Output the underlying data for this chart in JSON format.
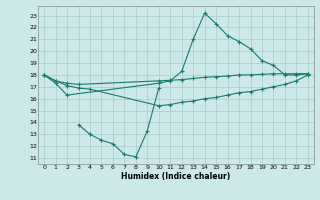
{
  "xlabel": "Humidex (Indice chaleur)",
  "background_color": "#cce8e8",
  "grid_color": "#aacccc",
  "line_color": "#1a7a6e",
  "xlim": [
    -0.5,
    23.5
  ],
  "ylim": [
    10.5,
    23.8
  ],
  "yticks": [
    11,
    12,
    13,
    14,
    15,
    16,
    17,
    18,
    19,
    20,
    21,
    22,
    23
  ],
  "xticks": [
    0,
    1,
    2,
    3,
    4,
    5,
    6,
    7,
    8,
    9,
    10,
    11,
    12,
    13,
    14,
    15,
    16,
    17,
    18,
    19,
    20,
    21,
    22,
    23
  ],
  "line1_x": [
    0,
    1,
    2,
    10,
    11,
    12,
    13,
    14,
    15,
    16,
    17,
    18,
    19,
    20,
    21,
    22,
    23
  ],
  "line1_y": [
    18.0,
    17.3,
    16.3,
    17.3,
    17.5,
    18.3,
    21.0,
    23.2,
    22.3,
    21.3,
    20.8,
    20.2,
    19.2,
    18.8,
    18.0,
    18.0,
    18.1
  ],
  "line2_x": [
    0,
    1,
    2,
    3,
    10,
    11,
    12,
    13,
    14,
    15,
    16,
    17,
    18,
    19,
    20,
    21,
    22,
    23
  ],
  "line2_y": [
    18.0,
    17.5,
    17.3,
    17.2,
    17.5,
    17.55,
    17.6,
    17.7,
    17.8,
    17.85,
    17.9,
    18.0,
    18.0,
    18.05,
    18.1,
    18.1,
    18.1,
    18.1
  ],
  "line3_x": [
    0,
    1,
    2,
    3,
    4,
    10,
    11,
    12,
    13,
    14,
    15,
    16,
    17,
    18,
    19,
    20,
    21,
    22,
    23
  ],
  "line3_y": [
    18.0,
    17.5,
    17.1,
    16.9,
    16.8,
    15.4,
    15.5,
    15.7,
    15.8,
    16.0,
    16.1,
    16.3,
    16.5,
    16.6,
    16.8,
    17.0,
    17.2,
    17.5,
    18.0
  ],
  "line4_x": [
    3,
    4,
    5,
    6,
    7,
    8,
    9,
    10
  ],
  "line4_y": [
    13.8,
    13.0,
    12.5,
    12.2,
    11.3,
    11.1,
    13.3,
    16.9
  ]
}
